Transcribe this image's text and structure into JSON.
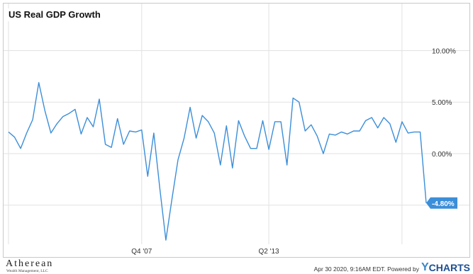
{
  "chart_data": {
    "type": "line",
    "title": "US Real GDP Growth",
    "xlabel": "",
    "ylabel": "",
    "x_ticks": [
      "Q4 '07",
      "Q2 '13"
    ],
    "y_ticks": [
      "10.00%",
      "5.00%",
      "0.00%"
    ],
    "ylim": [
      -8.8,
      14.5
    ],
    "grid": true,
    "legend": "none",
    "last_value_label": "-4.80%",
    "series": [
      {
        "color": "#3b8ed9",
        "values": [
          2.1,
          1.6,
          0.5,
          2.0,
          3.3,
          6.9,
          4.2,
          2.0,
          2.9,
          3.6,
          3.9,
          4.3,
          1.9,
          3.5,
          2.6,
          5.3,
          0.9,
          0.6,
          3.4,
          0.9,
          2.2,
          2.1,
          2.3,
          -2.2,
          2.0,
          -3.4,
          -8.4,
          -4.4,
          -0.6,
          1.5,
          4.5,
          1.5,
          3.7,
          3.1,
          2.0,
          -1.1,
          2.7,
          -1.4,
          3.2,
          1.7,
          0.5,
          0.5,
          3.2,
          0.4,
          3.1,
          3.1,
          -1.1,
          5.4,
          5.0,
          2.2,
          2.8,
          1.7,
          0.0,
          1.9,
          1.8,
          2.1,
          1.9,
          2.2,
          2.2,
          3.2,
          3.5,
          2.5,
          3.5,
          2.9,
          1.1,
          3.1,
          2.0,
          2.1,
          2.1,
          -4.8
        ]
      }
    ]
  },
  "footer": {
    "logo_name": "Atherean",
    "logo_sub": "Wealth Management, LLC",
    "stamp": "Apr 30 2020, 9:16AM EDT.  Powered by",
    "brand_y": "Y",
    "brand_charts": "CHARTS"
  }
}
